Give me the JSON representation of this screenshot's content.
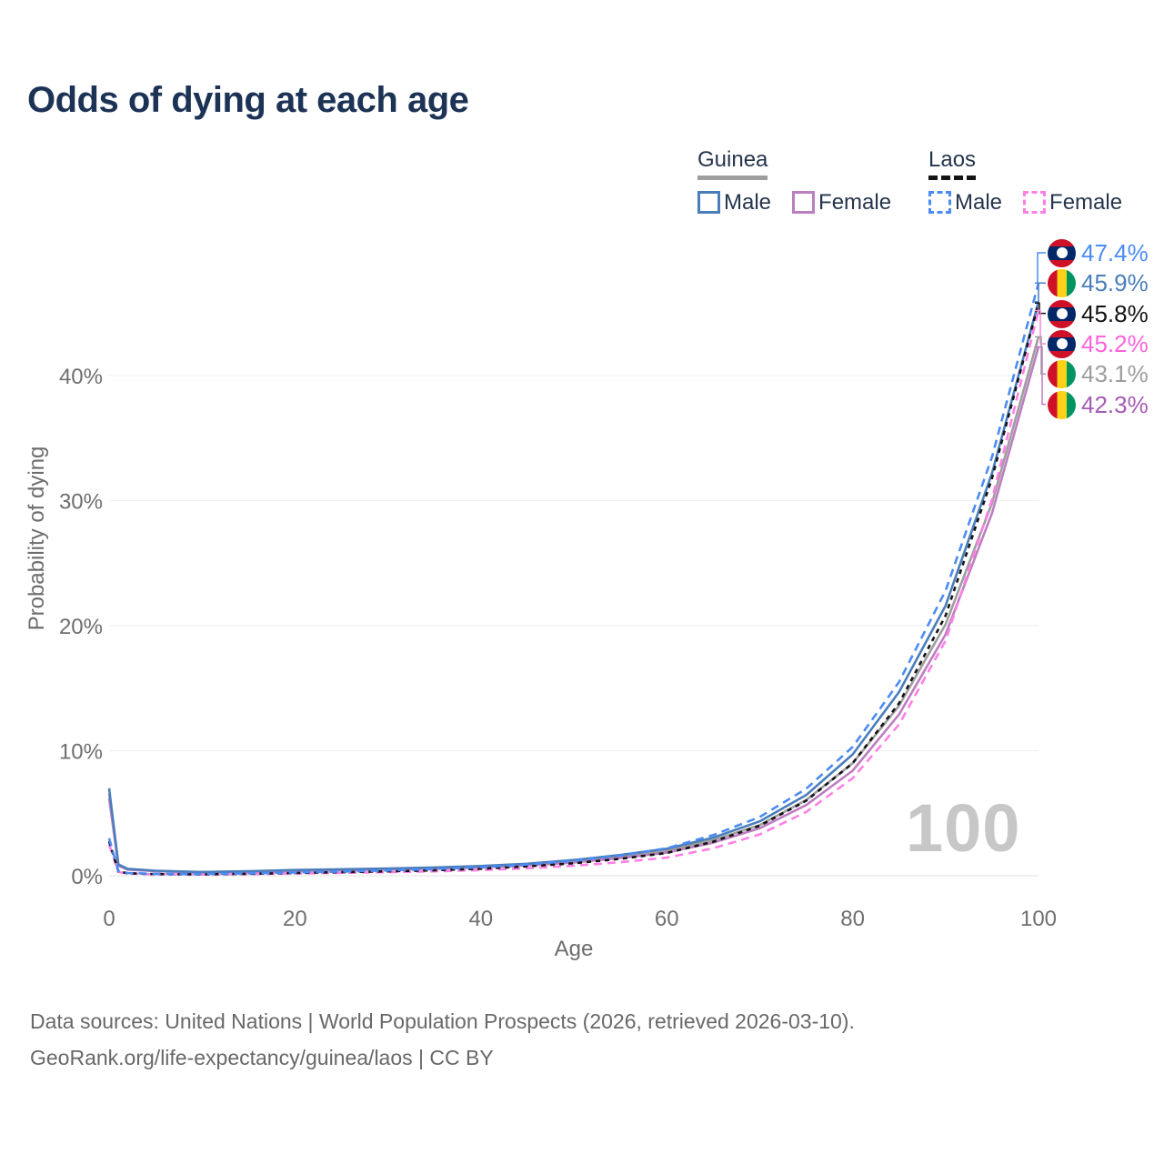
{
  "title": "Odds of dying at each age",
  "watermark_age_label": "100",
  "legend": {
    "groups": [
      {
        "id": "guinea",
        "label": "Guinea",
        "underline_series": "guinea_both",
        "items": [
          {
            "series": "guinea_male",
            "label": "Male"
          },
          {
            "series": "guinea_female",
            "label": "Female"
          }
        ]
      },
      {
        "id": "laos",
        "label": "Laos",
        "underline_series": "laos_both",
        "items": [
          {
            "series": "laos_male",
            "label": "Male"
          },
          {
            "series": "laos_female",
            "label": "Female"
          }
        ]
      }
    ]
  },
  "axes": {
    "x": {
      "label": "Age",
      "ticks": [
        "0",
        "20",
        "40",
        "60",
        "80",
        "100"
      ],
      "tick_values": [
        0,
        20,
        40,
        60,
        80,
        100
      ]
    },
    "y": {
      "label": "Probability of dying",
      "ticks": [
        "0%",
        "10%",
        "20%",
        "30%",
        "40%"
      ],
      "tick_values": [
        0,
        10,
        20,
        30,
        40
      ]
    }
  },
  "chart_data": {
    "type": "line",
    "title": "Odds of dying at each age",
    "xlabel": "Age",
    "ylabel": "Probability of dying",
    "x_range": [
      0,
      100
    ],
    "y_range_pct": [
      0,
      47.4
    ],
    "grid": "horizontal-only",
    "legend_position": "top-right",
    "x": [
      0,
      1,
      2,
      5,
      10,
      15,
      20,
      25,
      30,
      35,
      40,
      45,
      50,
      55,
      60,
      65,
      70,
      75,
      80,
      85,
      90,
      95,
      100
    ],
    "series": [
      {
        "key": "guinea_both",
        "country": "Guinea",
        "sex": "both",
        "color": "#9e9e9e",
        "line_style": "solid",
        "values": [
          6.6,
          0.85,
          0.52,
          0.38,
          0.28,
          0.33,
          0.42,
          0.48,
          0.54,
          0.61,
          0.72,
          0.89,
          1.16,
          1.53,
          2.0,
          2.85,
          4.05,
          6.05,
          9.0,
          13.6,
          20.1,
          29.8,
          43.1
        ]
      },
      {
        "key": "guinea_female",
        "country": "Guinea",
        "sex": "female",
        "color": "#bc7ec0",
        "line_style": "solid",
        "values": [
          6.2,
          0.8,
          0.49,
          0.36,
          0.26,
          0.3,
          0.38,
          0.44,
          0.5,
          0.56,
          0.66,
          0.82,
          1.06,
          1.41,
          1.85,
          2.65,
          3.8,
          5.65,
          8.4,
          12.9,
          19.3,
          29.0,
          42.3
        ]
      },
      {
        "key": "guinea_male",
        "country": "Guinea",
        "sex": "male",
        "color": "#4a7ebb",
        "line_style": "solid",
        "values": [
          7.0,
          0.9,
          0.55,
          0.4,
          0.3,
          0.36,
          0.46,
          0.52,
          0.58,
          0.66,
          0.78,
          0.96,
          1.26,
          1.66,
          2.16,
          3.05,
          4.35,
          6.45,
          9.7,
          14.7,
          21.6,
          32.2,
          45.9
        ]
      },
      {
        "key": "laos_female",
        "country": "Laos",
        "sex": "female",
        "color": "#ff80e5",
        "line_style": "dashed",
        "values": [
          2.5,
          0.3,
          0.18,
          0.12,
          0.1,
          0.13,
          0.18,
          0.23,
          0.28,
          0.35,
          0.45,
          0.6,
          0.8,
          1.08,
          1.45,
          2.2,
          3.3,
          5.1,
          7.8,
          12.1,
          18.8,
          30.1,
          45.2
        ]
      },
      {
        "key": "laos_both",
        "country": "Laos",
        "sex": "both",
        "color": "#141414",
        "line_style": "short-dash",
        "values": [
          2.75,
          0.34,
          0.2,
          0.13,
          0.11,
          0.15,
          0.22,
          0.28,
          0.35,
          0.44,
          0.56,
          0.75,
          1.0,
          1.35,
          1.82,
          2.72,
          4.0,
          6.0,
          9.0,
          13.8,
          20.8,
          31.8,
          45.8
        ]
      },
      {
        "key": "laos_male",
        "country": "Laos",
        "sex": "male",
        "color": "#4b8bf4",
        "line_style": "dashed",
        "values": [
          3.0,
          0.38,
          0.22,
          0.15,
          0.13,
          0.18,
          0.26,
          0.33,
          0.42,
          0.53,
          0.68,
          0.9,
          1.2,
          1.62,
          2.2,
          3.25,
          4.7,
          6.95,
          10.3,
          15.5,
          22.8,
          33.5,
          47.4
        ]
      }
    ]
  },
  "end_labels": [
    {
      "series": "laos_male",
      "flag": "laos",
      "value": "47.4%",
      "color": "#4b8bf4"
    },
    {
      "series": "guinea_male",
      "flag": "guinea",
      "value": "45.9%",
      "color": "#4a7ebb"
    },
    {
      "series": "laos_both",
      "flag": "laos",
      "value": "45.8%",
      "color": "#141414"
    },
    {
      "series": "laos_female",
      "flag": "laos",
      "value": "45.2%",
      "color": "#ff63da"
    },
    {
      "series": "guinea_both",
      "flag": "guinea",
      "value": "43.1%",
      "color": "#9e9e9e"
    },
    {
      "series": "guinea_female",
      "flag": "guinea",
      "value": "42.3%",
      "color": "#a55cb5"
    }
  ],
  "flag_colors": {
    "laos": {
      "red": "#ce1126",
      "blue": "#002868",
      "circle": "#ffffff"
    },
    "guinea": {
      "red": "#ce1126",
      "yellow": "#fcd116",
      "green": "#009460"
    }
  },
  "footer": {
    "line1": "Data sources: United Nations | World Population Prospects (2026, retrieved 2026-03-10).",
    "line2": "GeoRank.org/life-expectancy/guinea/laos | CC BY"
  }
}
